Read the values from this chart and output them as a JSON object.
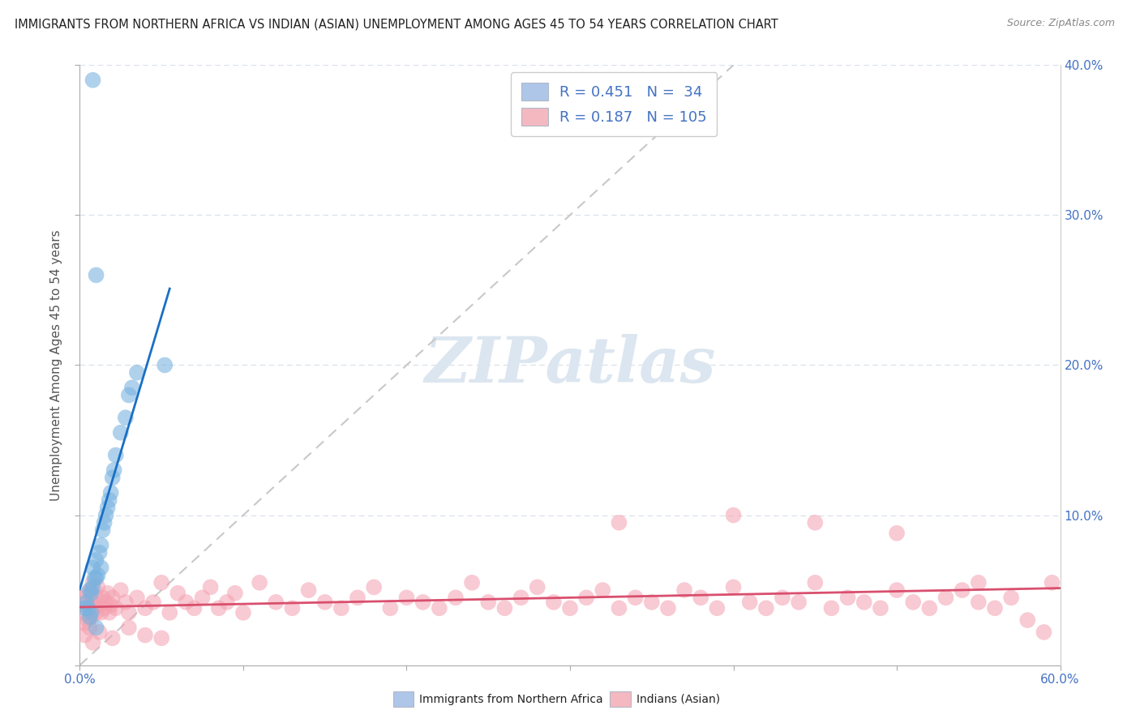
{
  "title": "IMMIGRANTS FROM NORTHERN AFRICA VS INDIAN (ASIAN) UNEMPLOYMENT AMONG AGES 45 TO 54 YEARS CORRELATION CHART",
  "source": "Source: ZipAtlas.com",
  "ylabel": "Unemployment Among Ages 45 to 54 years",
  "xlim": [
    0.0,
    0.6
  ],
  "ylim": [
    0.0,
    0.4
  ],
  "legend1_label": "R = 0.451   N =  34",
  "legend2_label": "R = 0.187   N = 105",
  "legend1_color": "#aec6e8",
  "legend2_color": "#f4b8c1",
  "scatter1_color": "#7ab3e0",
  "scatter2_color": "#f4a0b0",
  "line1_color": "#1a6fc4",
  "line2_color": "#d94f6e",
  "diag_color": "#c8c8c8",
  "watermark": "ZIPatlas",
  "watermark_color": "#dce6f0",
  "background_color": "#ffffff",
  "grid_color": "#d8dfe8",
  "tick_color": "#4472c4",
  "N1": 34,
  "N2": 105,
  "scatter1_x": [
    0.003,
    0.004,
    0.005,
    0.006,
    0.006,
    0.007,
    0.007,
    0.008,
    0.008,
    0.009,
    0.01,
    0.01,
    0.011,
    0.012,
    0.013,
    0.013,
    0.014,
    0.015,
    0.016,
    0.017,
    0.018,
    0.019,
    0.02,
    0.021,
    0.022,
    0.025,
    0.028,
    0.03,
    0.032,
    0.035,
    0.008,
    0.01,
    0.052,
    0.01
  ],
  "scatter1_y": [
    0.038,
    0.042,
    0.038,
    0.05,
    0.032,
    0.048,
    0.035,
    0.052,
    0.065,
    0.058,
    0.07,
    0.058,
    0.06,
    0.075,
    0.08,
    0.065,
    0.09,
    0.095,
    0.1,
    0.105,
    0.11,
    0.115,
    0.125,
    0.13,
    0.14,
    0.155,
    0.165,
    0.18,
    0.185,
    0.195,
    0.39,
    0.26,
    0.2,
    0.025
  ],
  "scatter2_x": [
    0.002,
    0.003,
    0.003,
    0.004,
    0.005,
    0.005,
    0.006,
    0.006,
    0.007,
    0.007,
    0.008,
    0.008,
    0.009,
    0.01,
    0.01,
    0.011,
    0.012,
    0.013,
    0.014,
    0.015,
    0.016,
    0.017,
    0.018,
    0.019,
    0.02,
    0.022,
    0.025,
    0.028,
    0.03,
    0.035,
    0.04,
    0.045,
    0.05,
    0.055,
    0.06,
    0.065,
    0.07,
    0.075,
    0.08,
    0.085,
    0.09,
    0.095,
    0.1,
    0.11,
    0.12,
    0.13,
    0.14,
    0.15,
    0.16,
    0.17,
    0.18,
    0.19,
    0.2,
    0.21,
    0.22,
    0.23,
    0.24,
    0.25,
    0.26,
    0.27,
    0.28,
    0.29,
    0.3,
    0.31,
    0.32,
    0.33,
    0.34,
    0.35,
    0.36,
    0.37,
    0.38,
    0.39,
    0.4,
    0.41,
    0.42,
    0.43,
    0.44,
    0.45,
    0.46,
    0.47,
    0.48,
    0.49,
    0.5,
    0.51,
    0.52,
    0.53,
    0.54,
    0.55,
    0.56,
    0.57,
    0.003,
    0.008,
    0.012,
    0.02,
    0.03,
    0.04,
    0.05,
    0.33,
    0.4,
    0.45,
    0.5,
    0.55,
    0.595,
    0.58,
    0.59
  ],
  "scatter2_y": [
    0.045,
    0.035,
    0.028,
    0.042,
    0.03,
    0.048,
    0.038,
    0.025,
    0.05,
    0.032,
    0.042,
    0.055,
    0.038,
    0.035,
    0.045,
    0.052,
    0.04,
    0.035,
    0.045,
    0.038,
    0.042,
    0.048,
    0.035,
    0.04,
    0.045,
    0.038,
    0.05,
    0.042,
    0.035,
    0.045,
    0.038,
    0.042,
    0.055,
    0.035,
    0.048,
    0.042,
    0.038,
    0.045,
    0.052,
    0.038,
    0.042,
    0.048,
    0.035,
    0.055,
    0.042,
    0.038,
    0.05,
    0.042,
    0.038,
    0.045,
    0.052,
    0.038,
    0.045,
    0.042,
    0.038,
    0.045,
    0.055,
    0.042,
    0.038,
    0.045,
    0.052,
    0.042,
    0.038,
    0.045,
    0.05,
    0.038,
    0.045,
    0.042,
    0.038,
    0.05,
    0.045,
    0.038,
    0.052,
    0.042,
    0.038,
    0.045,
    0.042,
    0.055,
    0.038,
    0.045,
    0.042,
    0.038,
    0.05,
    0.042,
    0.038,
    0.045,
    0.05,
    0.042,
    0.038,
    0.045,
    0.02,
    0.015,
    0.022,
    0.018,
    0.025,
    0.02,
    0.018,
    0.095,
    0.1,
    0.095,
    0.088,
    0.055,
    0.055,
    0.03,
    0.022
  ]
}
